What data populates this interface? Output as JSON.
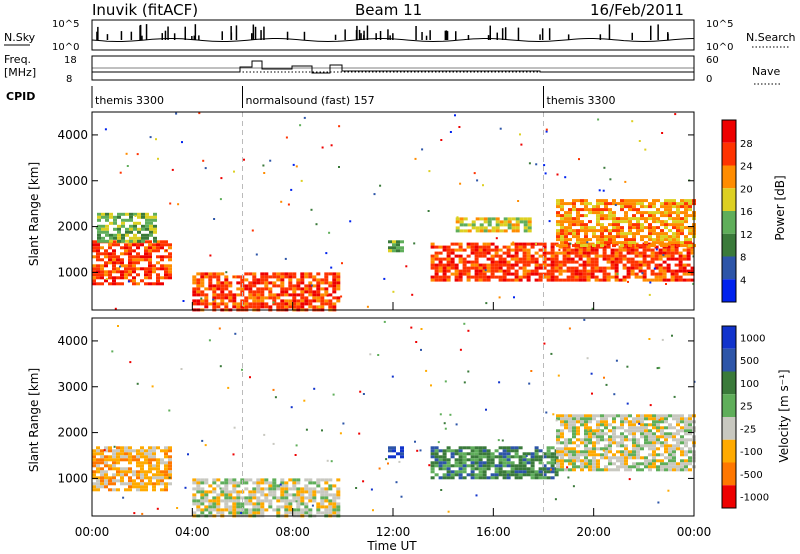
{
  "header": {
    "station": "Inuvik (fitACF)",
    "beam": "Beam 11",
    "date": "16/Feb/2011"
  },
  "nsky_panel": {
    "left_label": "N.Sky",
    "right_label": "N.Search",
    "left_ticks": [
      "10^5",
      "10^0"
    ],
    "right_ticks": [
      "10^5",
      "10^0"
    ]
  },
  "freq_panel": {
    "left_label_line1": "Freq.",
    "left_label_line2": "[MHz]",
    "right_label": "Nave",
    "left_ticks": [
      "18",
      "8"
    ],
    "right_ticks": [
      "60",
      "0"
    ]
  },
  "cpid_panel": {
    "label": "CPID",
    "segments": [
      {
        "start_hour": 0,
        "end_hour": 6.0,
        "text": "themis 3300"
      },
      {
        "start_hour": 6.0,
        "end_hour": 18.0,
        "text": "normalsound (fast) 157"
      },
      {
        "start_hour": 18.0,
        "end_hour": 24,
        "text": "themis 3300"
      }
    ]
  },
  "chart_data": [
    {
      "type": "heatmap",
      "name": "power",
      "ylabel": "Slant Range [km]",
      "ylim": [
        180,
        4500
      ],
      "yticks": [
        "1000",
        "2000",
        "3000",
        "4000"
      ],
      "colorbar_label": "Power [dB]",
      "colorbar_ticks": [
        "4",
        "8",
        "12",
        "16",
        "20",
        "24",
        "28"
      ],
      "colors": [
        "#0022ee",
        "#2d55a8",
        "#3a7a3a",
        "#5fae5a",
        "#ddd022",
        "#ff8c00",
        "#ff3300",
        "#ee0000"
      ],
      "regions": [
        {
          "t0": 0.0,
          "t1": 3.1,
          "r0": 750,
          "r1": 1700,
          "level": 6
        },
        {
          "t0": 0.2,
          "t1": 2.5,
          "r0": 1650,
          "r1": 2300,
          "level": 3
        },
        {
          "t0": 4.0,
          "t1": 9.9,
          "r0": 200,
          "r1": 1000,
          "level": 6
        },
        {
          "t0": 11.8,
          "t1": 12.3,
          "r0": 1450,
          "r1": 1700,
          "level": 3
        },
        {
          "t0": 13.5,
          "t1": 24.0,
          "r0": 800,
          "r1": 1650,
          "level": 6
        },
        {
          "t0": 14.5,
          "t1": 17.5,
          "r0": 1900,
          "r1": 2200,
          "level": 4
        },
        {
          "t0": 18.5,
          "t1": 24.0,
          "r0": 1600,
          "r1": 2600,
          "level": 5
        }
      ]
    },
    {
      "type": "heatmap",
      "name": "velocity",
      "ylabel": "Slant Range [km]",
      "ylim": [
        180,
        4500
      ],
      "yticks": [
        "1000",
        "2000",
        "3000",
        "4000"
      ],
      "colorbar_label": "Velocity [m s⁻¹]",
      "colorbar_ticks": [
        "1000",
        "500",
        "100",
        "25",
        "-25",
        "-100",
        "-500",
        "-1000"
      ],
      "colors": [
        "#1133cc",
        "#2d55a8",
        "#3a7a3a",
        "#5fae5a",
        "#c8c8c0",
        "#ffaa00",
        "#ff7700",
        "#ee0000"
      ],
      "regions": [
        {
          "t0": 0.0,
          "t1": 3.1,
          "r0": 750,
          "r1": 1700,
          "level": 5
        },
        {
          "t0": 4.0,
          "t1": 9.9,
          "r0": 200,
          "r1": 1000,
          "level": 4
        },
        {
          "t0": 11.8,
          "t1": 12.3,
          "r0": 1450,
          "r1": 1700,
          "level": 0
        },
        {
          "t0": 13.5,
          "t1": 18.5,
          "r0": 1000,
          "r1": 1700,
          "level": 2
        },
        {
          "t0": 18.5,
          "t1": 24.0,
          "r0": 1200,
          "r1": 2400,
          "level": 4
        }
      ]
    }
  ],
  "time_axis": {
    "label": "Time UT",
    "ticks": [
      "00:00",
      "04:00",
      "08:00",
      "12:00",
      "16:00",
      "20:00",
      "00:00"
    ],
    "xlim_hours": [
      0,
      24
    ]
  }
}
